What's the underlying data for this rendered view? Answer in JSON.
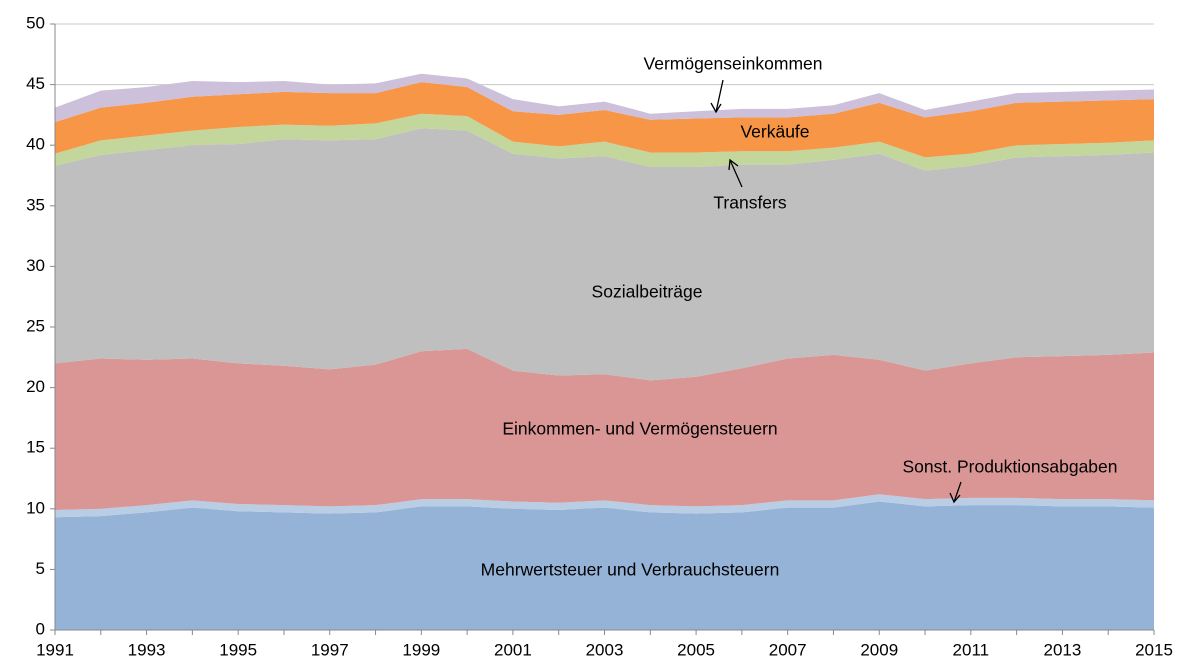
{
  "chart_data": {
    "type": "stacked_area",
    "x": [
      1991,
      1992,
      1993,
      1994,
      1995,
      1996,
      1997,
      1998,
      1999,
      2000,
      2001,
      2002,
      2003,
      2004,
      2005,
      2006,
      2007,
      2008,
      2009,
      2010,
      2011,
      2012,
      2013,
      2014,
      2015
    ],
    "xlim": [
      1991,
      2015
    ],
    "xticks": [
      1991,
      1993,
      1995,
      1997,
      1999,
      2001,
      2003,
      2005,
      2007,
      2009,
      2011,
      2013,
      2015
    ],
    "ylim": [
      0,
      50
    ],
    "yticks": [
      0,
      5,
      10,
      15,
      20,
      25,
      30,
      35,
      40,
      45,
      50
    ],
    "grid": true,
    "series": [
      {
        "name": "Mehrwertsteuer und Verbrauchsteuern",
        "color": "#95b3d7",
        "values": [
          9.3,
          9.4,
          9.7,
          10.1,
          9.8,
          9.7,
          9.6,
          9.7,
          10.2,
          10.2,
          10.0,
          9.9,
          10.1,
          9.7,
          9.6,
          9.7,
          10.1,
          10.1,
          10.6,
          10.2,
          10.3,
          10.3,
          10.2,
          10.2,
          10.1
        ]
      },
      {
        "name": "Sonst. Produktionsabgaben",
        "color": "#b9cde5",
        "values": [
          0.6,
          0.6,
          0.6,
          0.6,
          0.6,
          0.6,
          0.6,
          0.6,
          0.6,
          0.6,
          0.6,
          0.6,
          0.6,
          0.6,
          0.6,
          0.6,
          0.6,
          0.6,
          0.6,
          0.6,
          0.6,
          0.6,
          0.6,
          0.6,
          0.6
        ]
      },
      {
        "name": "Einkommen- und Vermögensteuern",
        "color": "#d99694",
        "values": [
          12.1,
          12.4,
          12.0,
          11.7,
          11.6,
          11.5,
          11.3,
          11.6,
          12.2,
          12.4,
          10.8,
          10.5,
          10.4,
          10.3,
          10.7,
          11.3,
          11.7,
          12.0,
          11.1,
          10.6,
          11.1,
          11.6,
          11.8,
          11.9,
          12.2
        ]
      },
      {
        "name": "Sozialbeiträge",
        "color": "#bfbfbf",
        "values": [
          16.3,
          16.8,
          17.3,
          17.6,
          18.1,
          18.7,
          18.9,
          18.6,
          18.4,
          18.0,
          17.9,
          17.9,
          18.0,
          17.6,
          17.3,
          16.8,
          16.0,
          16.1,
          17.0,
          16.5,
          16.3,
          16.5,
          16.5,
          16.5,
          16.5
        ]
      },
      {
        "name": "Transfers",
        "color": "#c3d69b",
        "values": [
          1.0,
          1.2,
          1.2,
          1.2,
          1.4,
          1.2,
          1.2,
          1.3,
          1.2,
          1.2,
          1.0,
          1.0,
          1.2,
          1.2,
          1.2,
          1.1,
          1.1,
          1.0,
          1.0,
          1.1,
          1.0,
          1.0,
          1.0,
          1.0,
          1.0
        ]
      },
      {
        "name": "Verkäufe",
        "color": "#f79646",
        "values": [
          2.6,
          2.7,
          2.7,
          2.8,
          2.7,
          2.7,
          2.7,
          2.5,
          2.6,
          2.4,
          2.5,
          2.6,
          2.6,
          2.7,
          2.8,
          2.8,
          2.8,
          2.8,
          3.2,
          3.3,
          3.5,
          3.5,
          3.5,
          3.5,
          3.4
        ]
      },
      {
        "name": "Vermögenseinkommen",
        "color": "#ccc0da",
        "values": [
          1.2,
          1.4,
          1.3,
          1.3,
          1.0,
          0.9,
          0.7,
          0.8,
          0.7,
          0.7,
          1.0,
          0.7,
          0.7,
          0.5,
          0.6,
          0.7,
          0.7,
          0.7,
          0.8,
          0.6,
          0.8,
          0.8,
          0.8,
          0.8,
          0.8
        ]
      }
    ]
  }
}
